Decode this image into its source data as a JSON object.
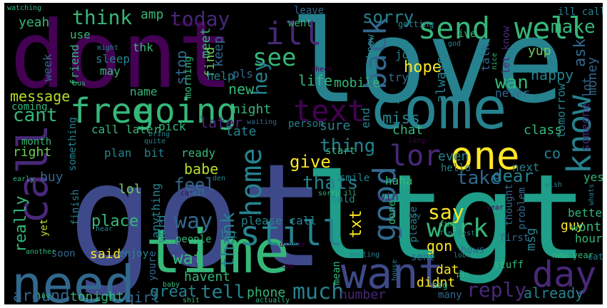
{
  "background_color": "#000000",
  "palette": {
    "dark_purple": "#440154",
    "indigo": "#482878",
    "blue": "#3e4989",
    "steel_blue": "#31688e",
    "teal": "#26828e",
    "aqua": "#1f9e89",
    "green": "#35b779",
    "lime": "#6ece58",
    "yellow_green": "#b5de2b",
    "yellow": "#fde725"
  },
  "words": [
    {
      "text": "love",
      "color": "#26828e"
    },
    {
      "text": "got",
      "color": "#3e4989"
    },
    {
      "text": "ltgt",
      "color": "#1f9e89"
    },
    {
      "text": "dont",
      "color": "#440154"
    },
    {
      "text": "come",
      "color": "#26828e"
    },
    {
      "text": "time",
      "color": "#35b779"
    },
    {
      "text": "need",
      "color": "#31688e"
    },
    {
      "text": "want",
      "color": "#3e4989"
    },
    {
      "text": "one",
      "color": "#fde725"
    },
    {
      "text": "day",
      "color": "#482878"
    },
    {
      "text": "call",
      "color": "#482878"
    },
    {
      "text": "going",
      "color": "#35b779"
    },
    {
      "text": "free",
      "color": "#35b779"
    },
    {
      "text": "send",
      "color": "#35b779"
    },
    {
      "text": "well",
      "color": "#35b779"
    },
    {
      "text": "know",
      "color": "#26828e"
    },
    {
      "text": "still",
      "color": "#26828e"
    },
    {
      "text": "text",
      "color": "#440154"
    },
    {
      "text": "home",
      "color": "#26828e"
    },
    {
      "text": "good",
      "color": "#31688e"
    },
    {
      "text": "back",
      "color": "#31688e"
    },
    {
      "text": "lor",
      "color": "#482878"
    },
    {
      "text": "see",
      "color": "#35b779"
    },
    {
      "text": "ill",
      "color": "#482878"
    },
    {
      "text": "think",
      "color": "#35b779"
    },
    {
      "text": "today",
      "color": "#482878"
    },
    {
      "text": "sorry",
      "color": "#26828e"
    },
    {
      "text": "make",
      "color": "#35b779"
    },
    {
      "text": "work",
      "color": "#35b779"
    },
    {
      "text": "say",
      "color": "#fde725"
    },
    {
      "text": "way",
      "color": "#31688e"
    },
    {
      "text": "tell",
      "color": "#26828e"
    },
    {
      "text": "much",
      "color": "#26828e"
    },
    {
      "text": "reply",
      "color": "#482878"
    },
    {
      "text": "thing",
      "color": "#26828e"
    },
    {
      "text": "give",
      "color": "#fde725"
    },
    {
      "text": "thats",
      "color": "#26828e"
    },
    {
      "text": "wat",
      "color": "#35b779"
    },
    {
      "text": "feel",
      "color": "#31688e"
    },
    {
      "text": "take",
      "color": "#31688e"
    },
    {
      "text": "dear",
      "color": "#26828e"
    },
    {
      "text": "hey",
      "color": "#26828e"
    },
    {
      "text": "thank",
      "color": "#26828e"
    },
    {
      "text": "new",
      "color": "#35b779"
    },
    {
      "text": "cant",
      "color": "#35b779"
    },
    {
      "text": "really",
      "color": "#35b779"
    },
    {
      "text": "around",
      "color": "#31688e"
    },
    {
      "text": "great",
      "color": "#26828e"
    },
    {
      "text": "phone",
      "color": "#35b779"
    },
    {
      "text": "number",
      "color": "#482878"
    },
    {
      "text": "already",
      "color": "#26828e"
    },
    {
      "text": "place",
      "color": "#35b779"
    },
    {
      "text": "said",
      "color": "#fde725"
    },
    {
      "text": "message",
      "color": "#b5de2b"
    },
    {
      "text": "tonight",
      "color": "#35b779"
    },
    {
      "text": "girl",
      "color": "#31688e"
    },
    {
      "text": "didnt",
      "color": "#fde725"
    },
    {
      "text": "txt",
      "color": "#fde725"
    },
    {
      "text": "miss",
      "color": "#26828e"
    },
    {
      "text": "happy",
      "color": "#26828e"
    },
    {
      "text": "life",
      "color": "#35b779"
    },
    {
      "text": "hope",
      "color": "#fde725"
    },
    {
      "text": "wan",
      "color": "#35b779"
    },
    {
      "text": "ask",
      "color": "#31688e"
    },
    {
      "text": "amp",
      "color": "#35b779"
    },
    {
      "text": "yeah",
      "color": "#35b779"
    },
    {
      "text": "meet",
      "color": "#35b779"
    },
    {
      "text": "stop",
      "color": "#31688e"
    },
    {
      "text": "find",
      "color": "#6ece58"
    },
    {
      "text": "night",
      "color": "#35b779"
    },
    {
      "text": "later",
      "color": "#482878"
    },
    {
      "text": "late",
      "color": "#26828e"
    },
    {
      "text": "sure",
      "color": "#26828e"
    },
    {
      "text": "babe",
      "color": "#b5de2b"
    },
    {
      "text": "lol",
      "color": "#6ece58"
    },
    {
      "text": "buy",
      "color": "#31688e"
    },
    {
      "text": "right",
      "color": "#6ece58"
    },
    {
      "text": "gon",
      "color": "#fde725"
    },
    {
      "text": "guy",
      "color": "#fde725"
    },
    {
      "text": "yes",
      "color": "#35b779"
    },
    {
      "text": "dat",
      "color": "#fde725"
    },
    {
      "text": "msg",
      "color": "#26828e"
    },
    {
      "text": "wont",
      "color": "#35b779"
    },
    {
      "text": "hour",
      "color": "#35b779"
    },
    {
      "text": "better",
      "color": "#35b779"
    },
    {
      "text": "someone",
      "color": "#482878"
    },
    {
      "text": "tomorrow",
      "color": "#26828e"
    },
    {
      "text": "class",
      "color": "#35b779"
    },
    {
      "text": "chat",
      "color": "#35b779"
    },
    {
      "text": "co",
      "color": "#26828e"
    },
    {
      "text": "even",
      "color": "#26828e"
    },
    {
      "text": "next",
      "color": "#26828e"
    },
    {
      "text": "always",
      "color": "#26828e"
    },
    {
      "text": "mobile",
      "color": "#35b779"
    },
    {
      "text": "money",
      "color": "#31688e"
    },
    {
      "text": "lot",
      "color": "#31688e"
    },
    {
      "text": "never",
      "color": "#31688e"
    },
    {
      "text": "let know",
      "color": "#482878"
    },
    {
      "text": "yup",
      "color": "#6ece58"
    },
    {
      "text": "job",
      "color": "#26828e"
    },
    {
      "text": "talk",
      "color": "#31688e"
    },
    {
      "text": "ive",
      "color": "#35b779"
    },
    {
      "text": "dont know",
      "color": "#26828e"
    },
    {
      "text": "ill call",
      "color": "#26828e"
    },
    {
      "text": "leave",
      "color": "#31688e"
    },
    {
      "text": "went",
      "color": "#35b779"
    },
    {
      "text": "getting",
      "color": "#26828e"
    },
    {
      "text": "last",
      "color": "#26828e"
    },
    {
      "text": "keep",
      "color": "#31688e"
    },
    {
      "text": "help",
      "color": "#26828e"
    },
    {
      "text": "pls",
      "color": "#31688e"
    },
    {
      "text": "try",
      "color": "#31688e"
    },
    {
      "text": "week",
      "color": "#31688e"
    },
    {
      "text": "use",
      "color": "#35b779"
    },
    {
      "text": "friend",
      "color": "#35b779"
    },
    {
      "text": "thk",
      "color": "#35b779"
    },
    {
      "text": "sleep",
      "color": "#26828e"
    },
    {
      "text": "may",
      "color": "#35b779"
    },
    {
      "text": "morning",
      "color": "#35b779"
    },
    {
      "text": "name",
      "color": "#35b779"
    },
    {
      "text": "coming",
      "color": "#35b779"
    },
    {
      "text": "month",
      "color": "#35b779"
    },
    {
      "text": "call later",
      "color": "#35b779"
    },
    {
      "text": "pick",
      "color": "#35b779"
    },
    {
      "text": "bit",
      "color": "#26828e"
    },
    {
      "text": "plan",
      "color": "#26828e"
    },
    {
      "text": "ready",
      "color": "#35b779"
    },
    {
      "text": "something",
      "color": "#26828e"
    },
    {
      "text": "finish",
      "color": "#26828e"
    },
    {
      "text": "anything",
      "color": "#26828e"
    },
    {
      "text": "word",
      "color": "#26828e"
    },
    {
      "text": "let",
      "color": "#26828e"
    },
    {
      "text": "please call",
      "color": "#26828e"
    },
    {
      "text": "start",
      "color": "#35b779"
    },
    {
      "text": "smile",
      "color": "#26828e"
    },
    {
      "text": "hello",
      "color": "#26828e"
    },
    {
      "text": "haha",
      "color": "#35b779"
    },
    {
      "text": "win",
      "color": "#482878"
    },
    {
      "text": "please",
      "color": "#26828e"
    },
    {
      "text": "done",
      "color": "#35b779"
    },
    {
      "text": "told",
      "color": "#26828e"
    },
    {
      "text": "person",
      "color": "#26828e"
    },
    {
      "text": "end",
      "color": "#26828e"
    },
    {
      "text": "soon",
      "color": "#31688e"
    },
    {
      "text": "enjoy",
      "color": "#26828e"
    },
    {
      "text": "youre",
      "color": "#31688e"
    },
    {
      "text": "havent",
      "color": "#35b779"
    },
    {
      "text": "people",
      "color": "#35b779"
    },
    {
      "text": "mean",
      "color": "#35b779"
    },
    {
      "text": "sent",
      "color": "#31688e"
    },
    {
      "text": "hows",
      "color": "#31688e"
    },
    {
      "text": "first",
      "color": "#31688e"
    },
    {
      "text": "thought",
      "color": "#31688e"
    },
    {
      "text": "problem",
      "color": "#31688e"
    },
    {
      "text": "stuff",
      "color": "#35b779"
    },
    {
      "text": "many",
      "color": "#31688e"
    },
    {
      "text": "fun",
      "color": "#35b779"
    },
    {
      "text": "yet",
      "color": "#b5de2b"
    },
    {
      "text": "wish",
      "color": "#26828e"
    },
    {
      "text": "new year",
      "color": "#35b779"
    },
    {
      "text": "eat",
      "color": "#26828e"
    },
    {
      "text": "watching",
      "color": "#35b779"
    },
    {
      "text": "nothing",
      "color": "#440154"
    },
    {
      "text": "might",
      "color": "#26828e"
    },
    {
      "text": "bus",
      "color": "#35b779"
    },
    {
      "text": "car",
      "color": "#440154"
    },
    {
      "text": "waiting",
      "color": "#31688e"
    },
    {
      "text": "bring",
      "color": "#26828e"
    },
    {
      "text": "quite",
      "color": "#26828e"
    },
    {
      "text": "early",
      "color": "#35b779"
    },
    {
      "text": "sorry ill",
      "color": "#35b779"
    },
    {
      "text": "meeting",
      "color": "#26828e"
    },
    {
      "text": "dinner",
      "color": "#440154"
    },
    {
      "text": "another",
      "color": "#35b779"
    },
    {
      "text": "luv",
      "color": "#35b779"
    },
    {
      "text": "baby",
      "color": "#35b779"
    },
    {
      "text": "shit",
      "color": "#35b779"
    },
    {
      "text": "actually",
      "color": "#35b779"
    },
    {
      "text": "big",
      "color": "#35b779"
    },
    {
      "text": "boy",
      "color": "#26828e"
    },
    {
      "text": "pic",
      "color": "#35b779"
    },
    {
      "text": "look",
      "color": "#26828e"
    },
    {
      "text": "fine",
      "color": "#26828e"
    },
    {
      "text": "best",
      "color": "#26828e"
    },
    {
      "text": "house",
      "color": "#26828e"
    },
    {
      "text": "nice",
      "color": "#35b779"
    },
    {
      "text": "god",
      "color": "#26828e"
    },
    {
      "text": "year",
      "color": "#440154"
    },
    {
      "text": "den",
      "color": "#26828e"
    },
    {
      "text": "wait",
      "color": "#26828e"
    },
    {
      "text": "hear",
      "color": "#26828e"
    },
    {
      "text": "long",
      "color": "#440154"
    },
    {
      "text": "whats",
      "color": "#26828e"
    },
    {
      "text": "check",
      "color": "#440154"
    },
    {
      "text": "cos",
      "color": "#440154"
    }
  ]
}
